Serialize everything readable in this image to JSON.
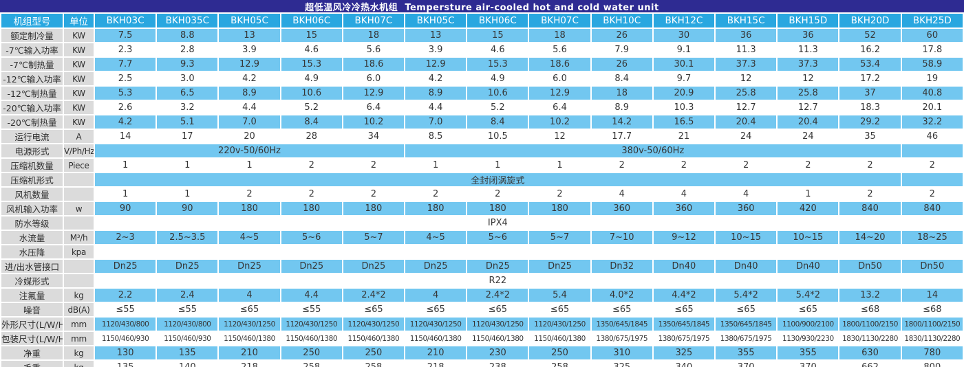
{
  "title": "超低温风冷冷热水机组  Tempersture air-cooled hot and cold water unit",
  "colors": {
    "title_bar_bg": "#2e2b92",
    "header_bg": "#29a7e0",
    "row_stripe_blue": "#72c7f0",
    "label_column_bg": "#dbdbdb"
  },
  "table": {
    "corner_label": "机组型号",
    "unit_label": "单位",
    "models": [
      "BKH03C",
      "BKH035C",
      "BKH05C",
      "BKH06C",
      "BKH07C",
      "BKH05C",
      "BKH06C",
      "BKH07C",
      "BKH10C",
      "BKH12C",
      "BKH15C",
      "BKH15D",
      "BKH20D",
      "BKH25D"
    ],
    "rows": [
      {
        "label": "额定制冷量",
        "unit": "KW",
        "values": [
          "7.5",
          "8.8",
          "13",
          "15",
          "18",
          "13",
          "15",
          "18",
          "26",
          "30",
          "36",
          "36",
          "52",
          "60"
        ]
      },
      {
        "label": "-7℃输入功率",
        "unit": "KW",
        "values": [
          "2.3",
          "2.8",
          "3.9",
          "4.6",
          "5.6",
          "3.9",
          "4.6",
          "5.6",
          "7.9",
          "9.1",
          "11.3",
          "11.3",
          "16.2",
          "17.8"
        ]
      },
      {
        "label": "-7℃制热量",
        "unit": "KW",
        "values": [
          "7.7",
          "9.3",
          "12.9",
          "15.3",
          "18.6",
          "12.9",
          "15.3",
          "18.6",
          "26",
          "30.1",
          "37.3",
          "37.3",
          "53.4",
          "58.9"
        ]
      },
      {
        "label": "-12℃输入功率",
        "unit": "KW",
        "values": [
          "2.5",
          "3.0",
          "4.2",
          "4.9",
          "6.0",
          "4.2",
          "4.9",
          "6.0",
          "8.4",
          "9.7",
          "12",
          "12",
          "17.2",
          "19"
        ]
      },
      {
        "label": "-12℃制热量",
        "unit": "KW",
        "values": [
          "5.3",
          "6.5",
          "8.9",
          "10.6",
          "12.9",
          "8.9",
          "10.6",
          "12.9",
          "18",
          "20.9",
          "25.8",
          "25.8",
          "37",
          "40.8"
        ]
      },
      {
        "label": "-20℃输入功率",
        "unit": "KW",
        "values": [
          "2.6",
          "3.2",
          "4.4",
          "5.2",
          "6.4",
          "4.4",
          "5.2",
          "6.4",
          "8.9",
          "10.3",
          "12.7",
          "12.7",
          "18.3",
          "20.1"
        ]
      },
      {
        "label": "-20℃制热量",
        "unit": "KW",
        "values": [
          "4.2",
          "5.1",
          "7.0",
          "8.4",
          "10.2",
          "7.0",
          "8.4",
          "10.2",
          "14.2",
          "16.5",
          "20.4",
          "20.4",
          "29.2",
          "32.2"
        ]
      },
      {
        "label": "运行电流",
        "unit": "A",
        "values": [
          "14",
          "17",
          "20",
          "28",
          "34",
          "8.5",
          "10.5",
          "12",
          "17.7",
          "21",
          "24",
          "24",
          "35",
          "46"
        ]
      },
      {
        "label": "电源形式",
        "unit": "V/Ph/Hz",
        "spans": [
          {
            "text": "220v-50/60Hz",
            "cols": 5
          },
          {
            "text": "380v-50/60Hz",
            "cols": 8
          },
          {
            "text": "",
            "cols": 1
          }
        ]
      },
      {
        "label": "压缩机数量",
        "unit": "Piece",
        "values": [
          "1",
          "1",
          "1",
          "2",
          "2",
          "1",
          "1",
          "1",
          "2",
          "2",
          "2",
          "2",
          "2",
          "2"
        ]
      },
      {
        "label": "压缩机形式",
        "unit": "",
        "spans": [
          {
            "text": "全封闭涡旋式",
            "cols": 13
          },
          {
            "text": "",
            "cols": 1
          }
        ]
      },
      {
        "label": "风机数量",
        "unit": "",
        "values": [
          "1",
          "1",
          "2",
          "2",
          "2",
          "2",
          "2",
          "2",
          "4",
          "4",
          "4",
          "1",
          "2",
          "2"
        ]
      },
      {
        "label": "风机输入功率",
        "unit": "w",
        "values": [
          "90",
          "90",
          "180",
          "180",
          "180",
          "180",
          "180",
          "180",
          "360",
          "360",
          "360",
          "420",
          "840",
          "840"
        ]
      },
      {
        "label": "防水等级",
        "unit": "",
        "spans": [
          {
            "text": "IPX4",
            "cols": 13
          },
          {
            "text": "",
            "cols": 1
          }
        ]
      },
      {
        "label": "水流量",
        "unit": "M³/h",
        "values": [
          "2~3",
          "2.5~3.5",
          "4~5",
          "5~6",
          "5~7",
          "4~5",
          "5~6",
          "5~7",
          "7~10",
          "9~12",
          "10~15",
          "10~15",
          "14~20",
          "18~25"
        ]
      },
      {
        "label": "水压降",
        "unit": "kpa",
        "values": [
          "",
          "",
          "",
          "",
          "",
          "",
          "",
          "",
          "",
          "",
          "",
          "",
          "",
          ""
        ]
      },
      {
        "label": "进/出水管接口",
        "unit": "",
        "values": [
          "Dn25",
          "Dn25",
          "Dn25",
          "Dn25",
          "Dn25",
          "Dn25",
          "Dn25",
          "Dn25",
          "Dn32",
          "Dn40",
          "Dn40",
          "Dn40",
          "Dn50",
          "Dn50"
        ]
      },
      {
        "label": "冷媒形式",
        "unit": "",
        "spans": [
          {
            "text": "R22",
            "cols": 13
          },
          {
            "text": "",
            "cols": 1
          }
        ]
      },
      {
        "label": "注氟量",
        "unit": "kg",
        "values": [
          "2.2",
          "2.4",
          "4",
          "4.4",
          "2.4*2",
          "4",
          "2.4*2",
          "5.4",
          "4.0*2",
          "4.4*2",
          "5.4*2",
          "5.4*2",
          "13.2",
          "14"
        ]
      },
      {
        "label": "噪音",
        "unit": "dB(A)",
        "values": [
          "≤55",
          "≤55",
          "≤65",
          "≤55",
          "≤65",
          "≤65",
          "≤65",
          "≤65",
          "≤65",
          "≤65",
          "≤65",
          "≤65",
          "≤68",
          "≤68"
        ]
      },
      {
        "label": "外形尺寸(L/W/H)",
        "unit": "mm",
        "values": [
          "1120/430/800",
          "1120/430/800",
          "1120/430/1250",
          "1120/430/1250",
          "1120/430/1250",
          "1120/430/1250",
          "1120/430/1250",
          "1120/430/1250",
          "1350/645/1845",
          "1350/645/1845",
          "1350/645/1845",
          "1100/900/2100",
          "1800/1100/2150",
          "1800/1100/2150"
        ]
      },
      {
        "label": "包装尺寸(L/W/H)",
        "unit": "mm",
        "values": [
          "1150/460/930",
          "1150/460/930",
          "1150/460/1380",
          "1150/460/1380",
          "1150/460/1380",
          "1150/460/1380",
          "1150/460/1380",
          "1150/460/1380",
          "1380/675/1975",
          "1380/675/1975",
          "1380/675/1975",
          "1130/930/2230",
          "1830/1130/2280",
          "1830/1130/2280"
        ]
      },
      {
        "label": "净重",
        "unit": "kg",
        "values": [
          "130",
          "135",
          "210",
          "250",
          "250",
          "210",
          "230",
          "250",
          "310",
          "325",
          "355",
          "355",
          "630",
          "780"
        ]
      },
      {
        "label": "毛重",
        "unit": "kg",
        "values": [
          "135",
          "140",
          "218",
          "258",
          "258",
          "218",
          "238",
          "258",
          "325",
          "340",
          "370",
          "370",
          "662",
          "800"
        ]
      }
    ]
  }
}
